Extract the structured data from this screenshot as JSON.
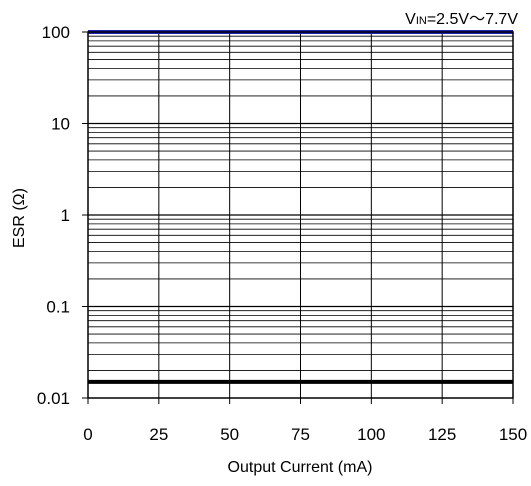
{
  "chart_data": {
    "type": "line",
    "title": "",
    "xlabel": "Output Current (mA)",
    "ylabel": "ESR (Ω)",
    "xlim": [
      0,
      150
    ],
    "ylim": [
      0.01,
      100
    ],
    "yscale": "log",
    "x_ticks": [
      "0",
      "25",
      "50",
      "75",
      "100",
      "125",
      "150"
    ],
    "y_ticks": [
      "0.01",
      "0.1",
      "1",
      "10",
      "100"
    ],
    "grid": true,
    "annotation": {
      "main": "V",
      "subscript": "IN",
      "condition": "=2.5V～7.7V"
    },
    "series": [
      {
        "x": [
          0,
          150
        ],
        "y": [
          100,
          100
        ],
        "color": "#1f22b5"
      },
      {
        "x": [
          0,
          150
        ],
        "y": [
          0.015,
          0.015
        ],
        "color": "#000000"
      }
    ]
  }
}
